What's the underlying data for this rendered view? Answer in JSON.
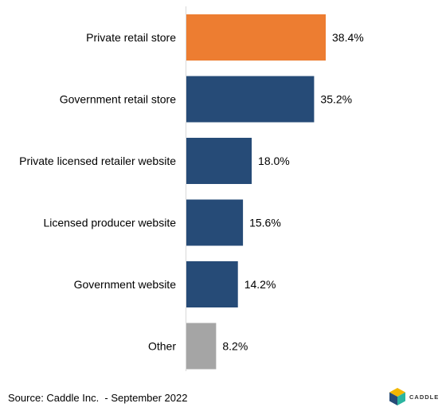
{
  "chart_data": {
    "type": "bar",
    "orientation": "horizontal",
    "categories": [
      "Private retail store",
      "Government retail store",
      "Private licensed retailer website",
      "Licensed producer website",
      "Government website",
      "Other"
    ],
    "values": [
      38.4,
      35.2,
      18.0,
      15.6,
      14.2,
      8.2
    ],
    "value_labels": [
      "38.4%",
      "35.2%",
      "18.0%",
      "15.6%",
      "14.2%",
      "8.2%"
    ],
    "bar_colors": [
      "#ED7D31",
      "#264B77",
      "#264B77",
      "#264B77",
      "#264B77",
      "#A5A5A5"
    ],
    "xlim": [
      0,
      40
    ],
    "grid": false,
    "legend": "none"
  },
  "footer": {
    "source": "Source: Caddle Inc.  - September 2022"
  },
  "logo": {
    "text": "CADDLE",
    "icon": "caddle-logo-icon",
    "colors": [
      "#F2B701",
      "#2CB5A0",
      "#264B77"
    ]
  }
}
